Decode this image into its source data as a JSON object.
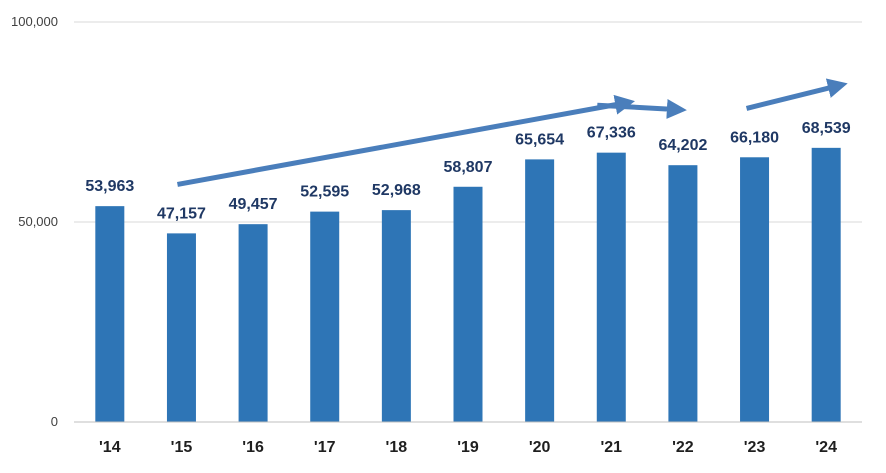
{
  "chart_data": {
    "type": "bar",
    "categories": [
      "'14",
      "'15",
      "'16",
      "'17",
      "'18",
      "'19",
      "'20",
      "'21",
      "'22",
      "'23",
      "'24"
    ],
    "values": [
      53963,
      47157,
      49457,
      52595,
      52968,
      58807,
      65654,
      67336,
      64202,
      66180,
      68539
    ],
    "value_labels": [
      "53,963",
      "47,157",
      "49,457",
      "52,595",
      "52,968",
      "58,807",
      "65,654",
      "67,336",
      "64,202",
      "66,180",
      "68,539"
    ],
    "yticks": [
      0,
      50000,
      100000
    ],
    "ytick_labels": [
      "0",
      "50,000",
      "100,000"
    ],
    "ylim": [
      0,
      100000
    ],
    "grid": true,
    "colors": {
      "bar": "#2e75b6",
      "arrow": "#4a7ebb",
      "grid": "#d9d9d9",
      "axis": "#bfbfbf"
    },
    "annotations": [
      {
        "type": "trend-arrow",
        "from_category": "'15",
        "to_category": "'21",
        "from_value": 59400,
        "to_value": 79500
      },
      {
        "type": "trend-arrow",
        "from_category": "'21",
        "to_category": "'22",
        "from_value": 79200,
        "to_value": 78200
      },
      {
        "type": "trend-arrow",
        "from_category": "'23",
        "to_category": "'24",
        "from_value": 78400,
        "to_value": 83700
      }
    ]
  }
}
